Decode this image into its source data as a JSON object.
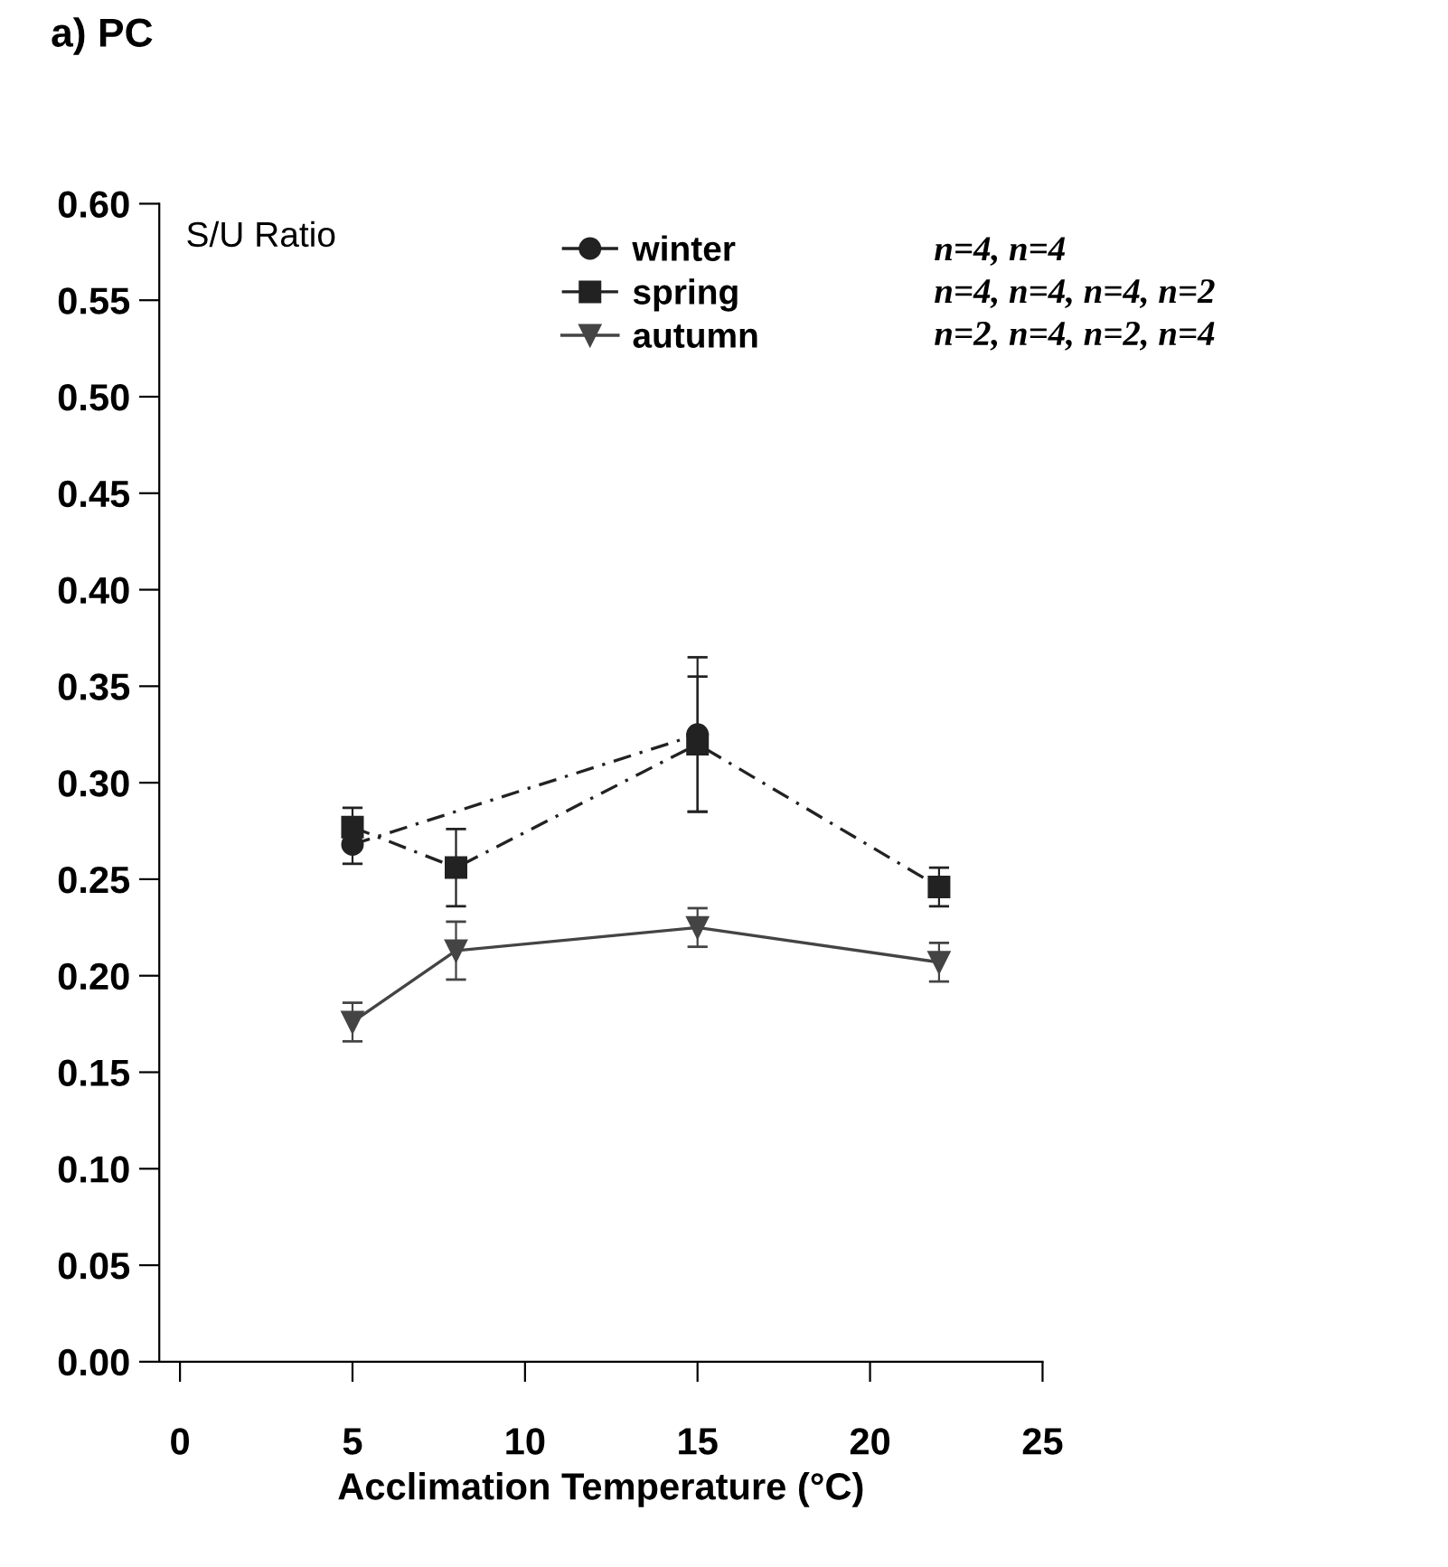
{
  "chart_data": {
    "type": "line",
    "title": "a) PC",
    "ylabel": "S/U Ratio",
    "xlabel": "Acclimation Temperature (°C)",
    "xlim": [
      -0.6,
      25
    ],
    "xticks": [
      0,
      5,
      10,
      15,
      20,
      25
    ],
    "ylim": [
      0,
      0.6
    ],
    "yticks": [
      {
        "value": 0,
        "label": "0.00"
      },
      {
        "value": 0.05,
        "label": "0.05"
      },
      {
        "value": 0.1,
        "label": "0.10"
      },
      {
        "value": 0.15,
        "label": "0.15"
      },
      {
        "value": 0.2,
        "label": "0.20"
      },
      {
        "value": 0.25,
        "label": "0.25"
      },
      {
        "value": 0.3,
        "label": "0.30"
      },
      {
        "value": 0.35,
        "label": "0.35"
      },
      {
        "value": 0.4,
        "label": "0.40"
      },
      {
        "value": 0.45,
        "label": "0.45"
      },
      {
        "value": 0.5,
        "label": "0.50"
      },
      {
        "value": 0.55,
        "label": "0.55"
      },
      {
        "value": 0.6,
        "label": "0.60"
      }
    ],
    "grid": false,
    "legend": "top right",
    "series": [
      {
        "name": "winter",
        "color": "#222222",
        "marker": "circle",
        "line_style": "dashed",
        "x": [
          5,
          15
        ],
        "values": [
          0.268,
          0.325
        ],
        "errors": [
          0.01,
          0.04
        ]
      },
      {
        "name": "spring",
        "color": "#222222",
        "marker": "square",
        "line_style": "dashed",
        "x": [
          5,
          8,
          15,
          22
        ],
        "values": [
          0.277,
          0.256,
          0.32,
          0.246
        ],
        "errors": [
          0.01,
          0.02,
          0.035,
          0.01
        ]
      },
      {
        "name": "autumn",
        "color": "#444444",
        "marker": "triangle",
        "line_style": "solid",
        "x": [
          5,
          8,
          15,
          22
        ],
        "values": [
          0.176,
          0.213,
          0.225,
          0.207
        ],
        "errors": [
          0.01,
          0.015,
          0.01,
          0.01
        ]
      }
    ],
    "annotations": [
      "n=4, n=4",
      "n=4, n=4, n=4, n=2",
      "n=2, n=4, n=2, n=4"
    ]
  }
}
